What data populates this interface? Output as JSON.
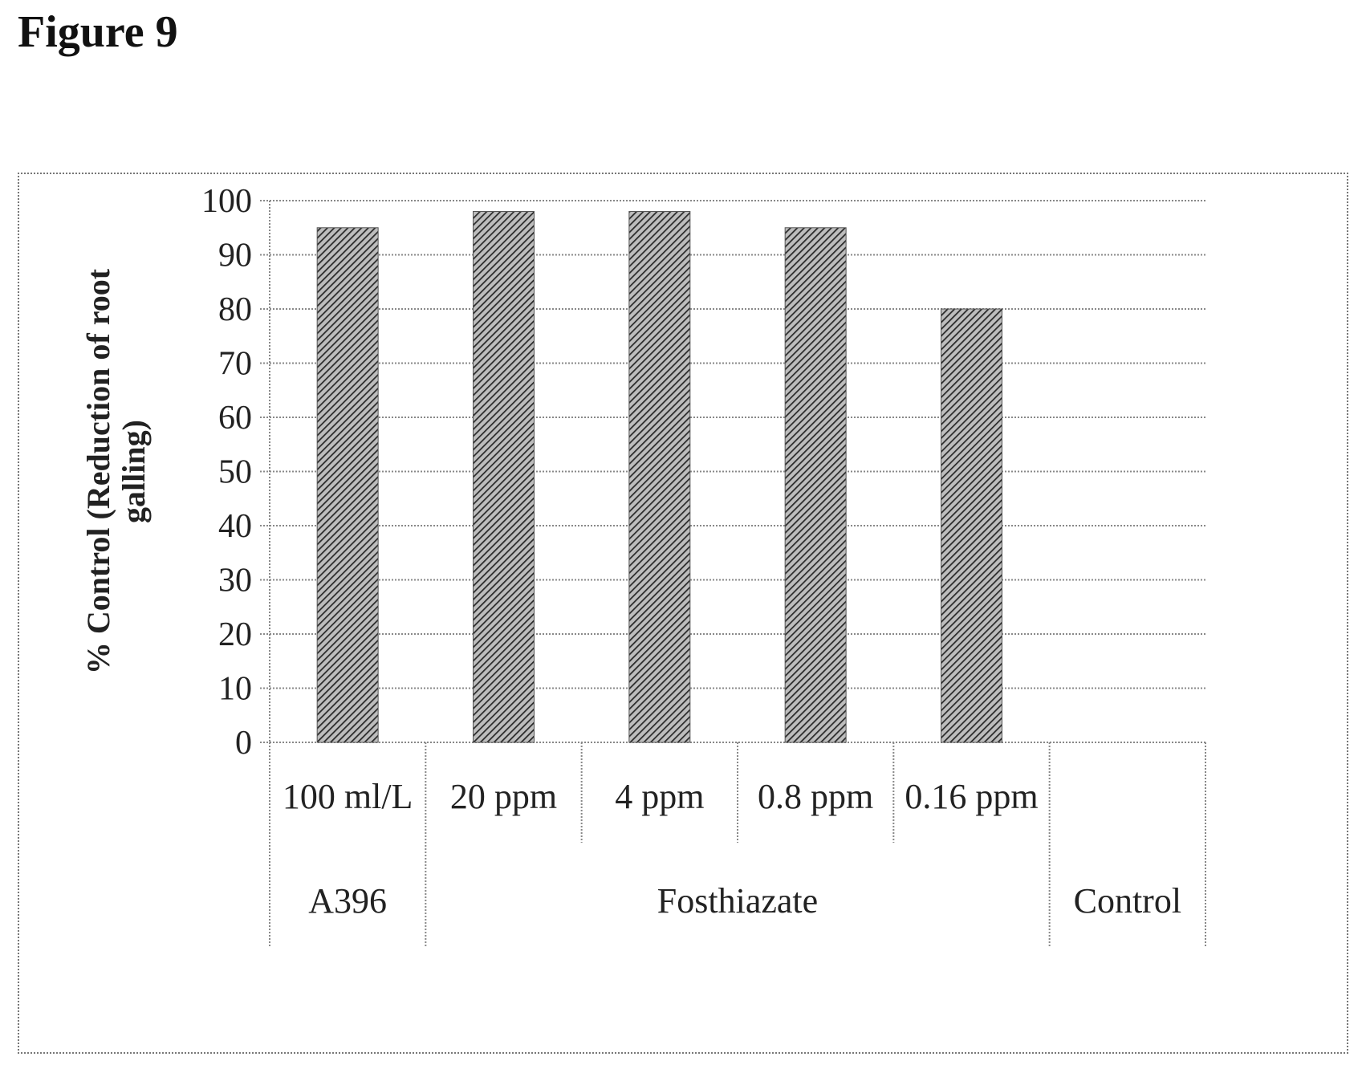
{
  "figure": {
    "title": "Figure 9"
  },
  "chart_data": {
    "type": "bar",
    "ylabel_lines": [
      "% Control (Reduction of root",
      "galling)"
    ],
    "ylim": [
      0,
      100
    ],
    "yticks": [
      0,
      10,
      20,
      30,
      40,
      50,
      60,
      70,
      80,
      90,
      100
    ],
    "grid": true,
    "categories": [
      "100 ml/L",
      "20 ppm",
      "4 ppm",
      "0.8 ppm",
      "0.16 ppm",
      ""
    ],
    "groups": [
      {
        "label": "A396",
        "span": 1
      },
      {
        "label": "Fosthiazate",
        "span": 4
      },
      {
        "label": "Control",
        "span": 1
      }
    ],
    "values": [
      95,
      98,
      98,
      95,
      80,
      0
    ],
    "bar_color": "#555555"
  }
}
